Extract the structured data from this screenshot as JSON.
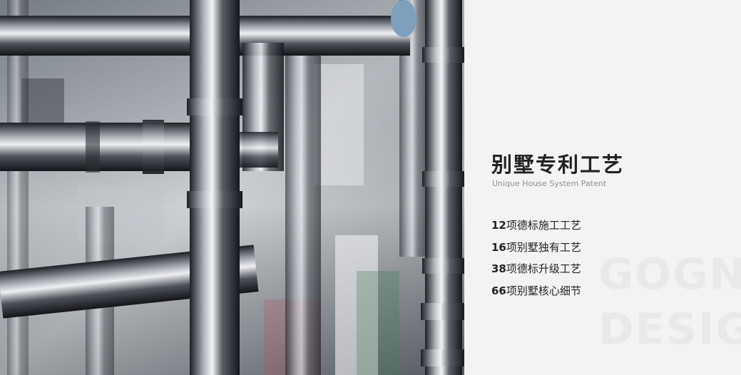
{
  "photo": {
    "description_icon": "industrial-pipes-image"
  },
  "panel": {
    "title": "别墅专利工艺",
    "subtitle": "Unique House System Patent",
    "features": [
      {
        "num": "12",
        "text": "项德标施工工艺"
      },
      {
        "num": "16",
        "text": "项别墅独有工艺"
      },
      {
        "num": "38",
        "text": "项德标升级工艺"
      },
      {
        "num": "66",
        "text": "项别墅核心细节"
      }
    ],
    "watermark": [
      "GOGN",
      "DESIGN"
    ]
  },
  "colors": {
    "background": "#f3f3f3",
    "text": "#222222",
    "subtext": "#8f8f8f",
    "watermark": "#e9e9e9"
  }
}
